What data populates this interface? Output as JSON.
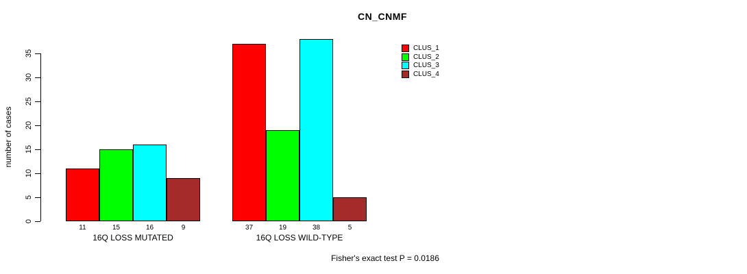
{
  "chart_data": {
    "type": "bar",
    "title": "CN_CNMF",
    "ylabel": "number of cases",
    "xlabel": "",
    "categories": [
      "16Q LOSS MUTATED",
      "16Q LOSS WILD-TYPE"
    ],
    "series": [
      {
        "name": "CLUS_1",
        "color": "#FF0000",
        "values": [
          11,
          37
        ]
      },
      {
        "name": "CLUS_2",
        "color": "#00FF00",
        "values": [
          15,
          19
        ]
      },
      {
        "name": "CLUS_3",
        "color": "#00FFFF",
        "values": [
          16,
          38
        ]
      },
      {
        "name": "CLUS_4",
        "color": "#A52A2A",
        "values": [
          9,
          5
        ]
      }
    ],
    "yticks": [
      0,
      5,
      10,
      15,
      20,
      25,
      30,
      35
    ],
    "ylim": [
      0,
      38
    ],
    "grid": false,
    "legend_position": "top-right",
    "bar_border_color": "#000000",
    "annotation": "Fisher's exact test P = 0.0186"
  }
}
